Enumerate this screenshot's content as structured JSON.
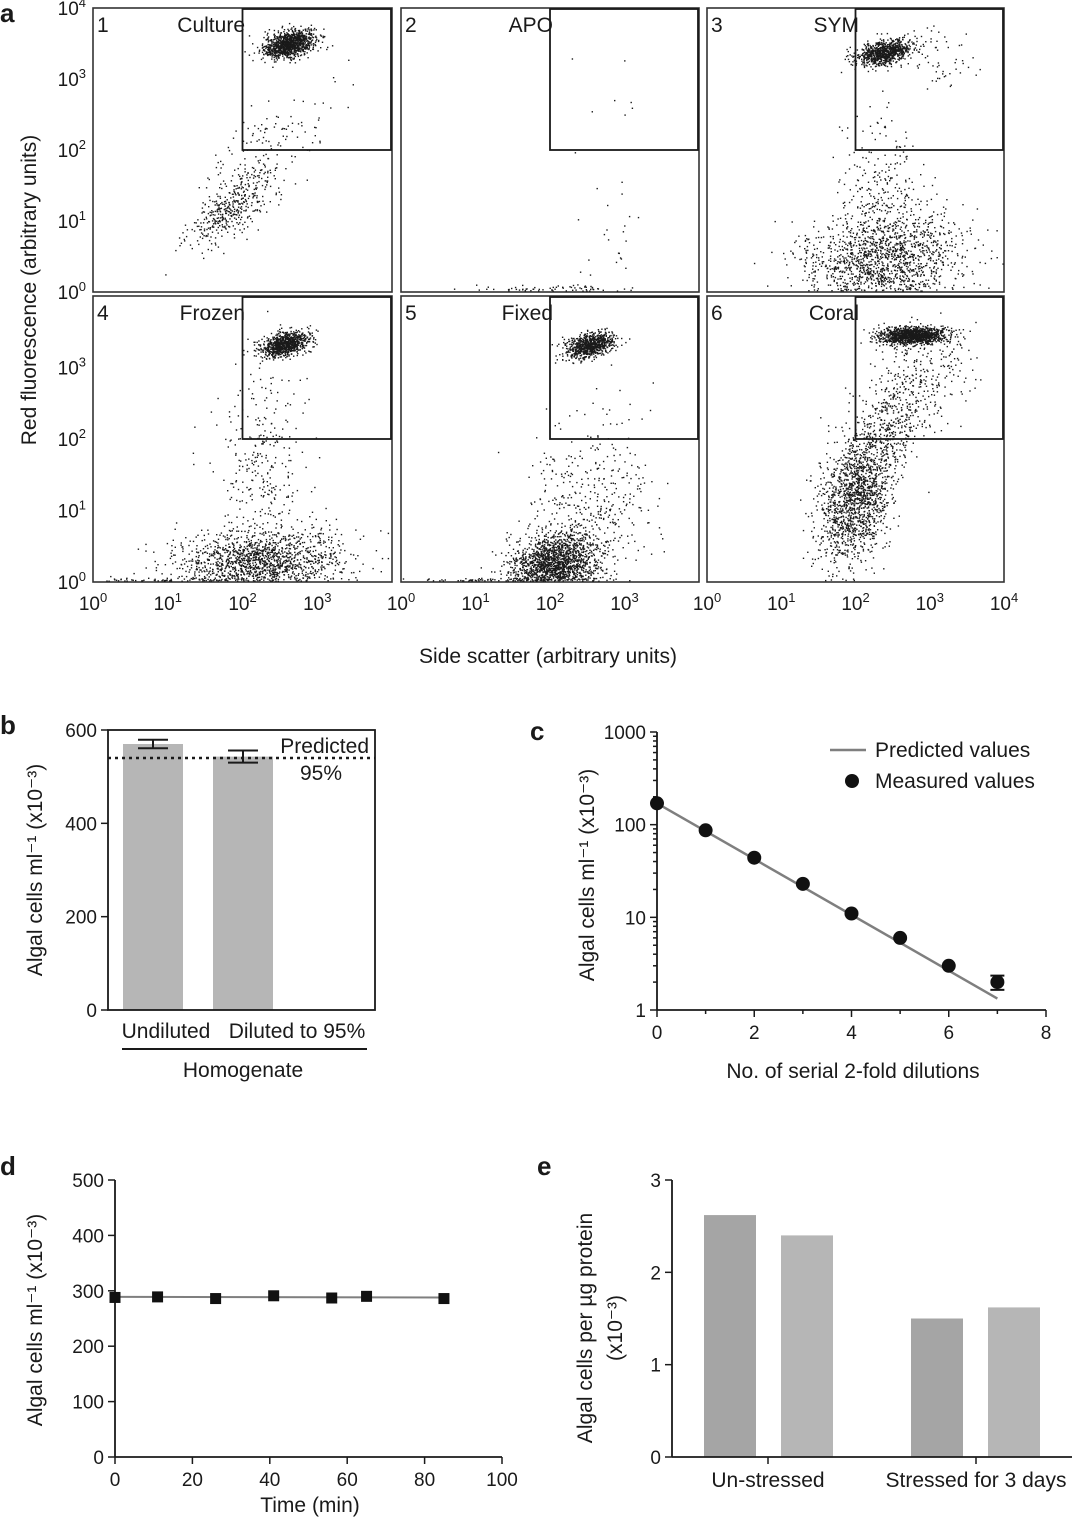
{
  "figure": {
    "panel_letters": [
      "a",
      "b",
      "c",
      "d",
      "e"
    ]
  },
  "colors": {
    "bar_dark": "#a5a5a5",
    "bar_light": "#b6b6b6",
    "line_gray": "#7f7f7f",
    "point_black": "#111111"
  },
  "chart_data": [
    {
      "id": "a",
      "type": "scatter",
      "xlabel": "Side scatter (arbitrary units)",
      "ylabel": "Red fluorescence (arbitrary units)",
      "scale": "log",
      "xlim": [
        1,
        10000
      ],
      "ylim": [
        1,
        10000
      ],
      "x_ticks": [
        {
          "base": "10",
          "exp": "0"
        },
        {
          "base": "10",
          "exp": "1"
        },
        {
          "base": "10",
          "exp": "2"
        },
        {
          "base": "10",
          "exp": "3"
        },
        {
          "base": "10",
          "exp": "4"
        }
      ],
      "y_ticks": [
        {
          "base": "10",
          "exp": "0"
        },
        {
          "base": "10",
          "exp": "1"
        },
        {
          "base": "10",
          "exp": "2"
        },
        {
          "base": "10",
          "exp": "3"
        },
        {
          "base": "10",
          "exp": "4"
        }
      ],
      "gate": {
        "x_range": [
          100,
          10000
        ],
        "y_range": [
          100,
          10000
        ]
      },
      "subplots": [
        {
          "number": "1",
          "label": "Culture"
        },
        {
          "number": "2",
          "label": "APO"
        },
        {
          "number": "3",
          "label": "SYM"
        },
        {
          "number": "4",
          "label": "Frozen"
        },
        {
          "number": "5",
          "label": "Fixed"
        },
        {
          "number": "6",
          "label": "Coral"
        }
      ]
    },
    {
      "id": "b",
      "type": "bar",
      "categories": [
        "Undiluted",
        "Diluted to 95%"
      ],
      "values": [
        570,
        543
      ],
      "errors": [
        9,
        13
      ],
      "ylim": [
        0,
        600
      ],
      "y_ticks": [
        "0",
        "200",
        "400",
        "600"
      ],
      "ylabel": "Algal cells ml⁻¹ (x10⁻³)",
      "group_label": "Homogenate",
      "reference_line": {
        "value": 540,
        "label_line1": "Predicted",
        "label_line2": "95%"
      }
    },
    {
      "id": "c",
      "type": "scatter",
      "scale_y": "log",
      "xlim": [
        0,
        8
      ],
      "ylim": [
        1,
        1000
      ],
      "x_ticks": [
        "0",
        "2",
        "4",
        "6",
        "8"
      ],
      "y_ticks": [
        "1",
        "10",
        "100",
        "1000"
      ],
      "xlabel": "No. of serial 2-fold dilutions",
      "ylabel": "Algal cells ml⁻¹ (x10⁻³)",
      "legend": {
        "placement": "top-right",
        "entries": [
          "Predicted values",
          "Measured values"
        ]
      },
      "series": [
        {
          "name": "Predicted values",
          "x": [
            0,
            7
          ],
          "y": [
            170,
            1.33
          ]
        },
        {
          "name": "Measured values",
          "x": [
            0,
            1,
            2,
            3,
            4,
            5,
            6,
            7
          ],
          "y": [
            170,
            87,
            44,
            23,
            11,
            6,
            3,
            2
          ],
          "errors_upper": [
            0,
            0,
            0,
            0,
            0,
            0,
            0,
            0.35
          ],
          "errors_lower": [
            0,
            0,
            0,
            0,
            0,
            0,
            0,
            0.35
          ]
        }
      ]
    },
    {
      "id": "d",
      "type": "line",
      "xlim": [
        0,
        100
      ],
      "ylim": [
        0,
        500
      ],
      "x_ticks": [
        "0",
        "20",
        "40",
        "60",
        "80",
        "100"
      ],
      "y_ticks": [
        "0",
        "100",
        "200",
        "300",
        "400",
        "500"
      ],
      "xlabel": "Time (min)",
      "ylabel": "Algal cells ml⁻¹ (x10⁻³)",
      "series": [
        {
          "x": [
            0,
            11,
            26,
            41,
            56,
            65,
            85
          ],
          "y": [
            288,
            289,
            286,
            291,
            287,
            290,
            286
          ]
        }
      ],
      "fit": {
        "x": [
          0,
          85
        ],
        "y": [
          289,
          288
        ]
      }
    },
    {
      "id": "e",
      "type": "bar",
      "categories": [
        "Un-stressed",
        "Stressed for 3 days"
      ],
      "values": [
        [
          2.62,
          2.4
        ],
        [
          1.5,
          1.62
        ]
      ],
      "ylim": [
        0,
        3
      ],
      "y_ticks": [
        "0",
        "1",
        "2",
        "3"
      ],
      "ylabel_line1": "Algal cells per µg protein",
      "ylabel_line2": "(x10⁻³)"
    }
  ]
}
